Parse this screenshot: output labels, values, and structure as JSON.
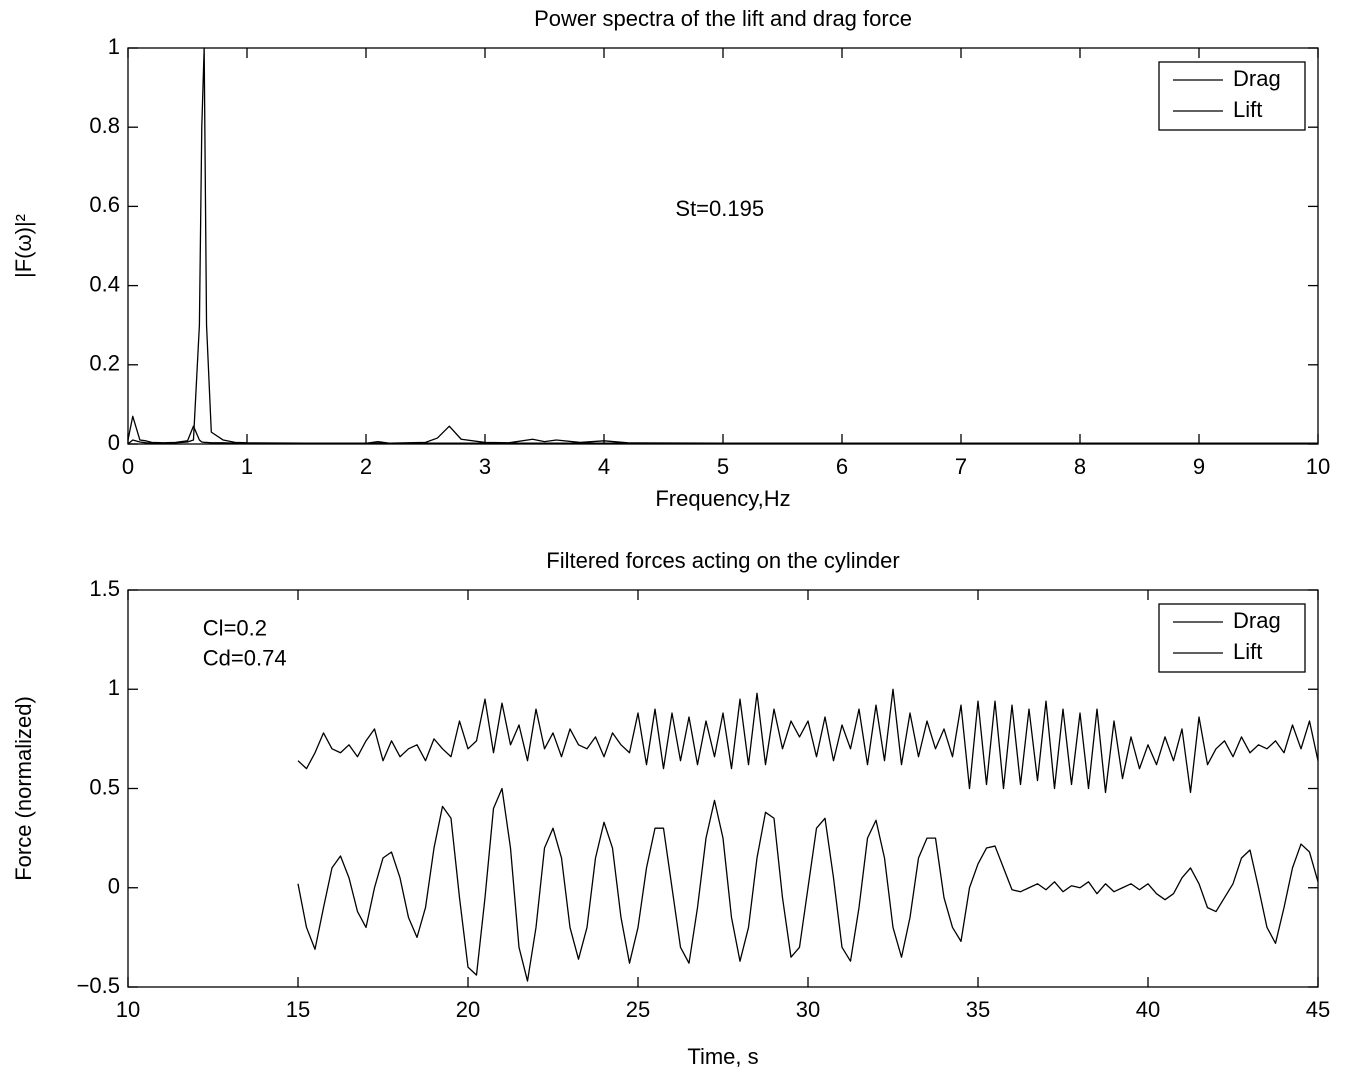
{
  "chart_data": [
    {
      "type": "line",
      "title": "Power spectra of the lift and drag force",
      "xlabel": "Frequency,Hz",
      "ylabel": "|F(ω)|²",
      "x": [
        0,
        0.04,
        0.1,
        0.15,
        0.2,
        0.3,
        0.4,
        0.5,
        0.55,
        0.6,
        0.62,
        0.64,
        0.66,
        0.7,
        0.8,
        0.9,
        1,
        1.5,
        2,
        2.1,
        2.2,
        2.5,
        2.6,
        2.7,
        2.8,
        3,
        3.2,
        3.4,
        3.5,
        3.6,
        3.8,
        4,
        4.2,
        5,
        6,
        7,
        8,
        9,
        10
      ],
      "series": [
        {
          "name": "Drag",
          "color": "#000000",
          "values": [
            0.01,
            0.07,
            0.01,
            0.008,
            0.004,
            0.003,
            0.004,
            0.008,
            0.045,
            0.01,
            0.005,
            0.004,
            0.004,
            0.003,
            0.003,
            0.002,
            0.002,
            0.002,
            0.002,
            0.006,
            0.002,
            0.004,
            0.015,
            0.045,
            0.012,
            0.004,
            0.003,
            0.012,
            0.006,
            0.01,
            0.004,
            0.008,
            0.003,
            0.002,
            0.002,
            0.002,
            0.002,
            0.002,
            0.002
          ]
        },
        {
          "name": "Lift",
          "color": "#000000",
          "values": [
            0,
            0.01,
            0.005,
            0.003,
            0.002,
            0.002,
            0.003,
            0.005,
            0.01,
            0.3,
            0.8,
            1,
            0.3,
            0.03,
            0.01,
            0.004,
            0.003,
            0.002,
            0.002,
            0.002,
            0.002,
            0.002,
            0.002,
            0.002,
            0.002,
            0.002,
            0.002,
            0.002,
            0.002,
            0.002,
            0.002,
            0.002,
            0.002,
            0.001,
            0.001,
            0.001,
            0.001,
            0.001,
            0.001
          ]
        }
      ],
      "xlim": [
        0,
        10
      ],
      "xticks": [
        0,
        1,
        2,
        3,
        4,
        5,
        6,
        7,
        8,
        9,
        10
      ],
      "ylim": [
        0,
        1
      ],
      "yticks": [
        0,
        0.2,
        0.4,
        0.6,
        0.8,
        1
      ],
      "grid": false,
      "legend": "upper right",
      "annotations": [
        {
          "text": "St=0.195",
          "x": 4.6,
          "y": 0.59
        }
      ]
    },
    {
      "type": "line",
      "title": "Filtered forces acting on the cylinder",
      "xlabel": "Time, s",
      "ylabel": "Force (normalized)",
      "x": [
        15,
        15.25,
        15.5,
        15.75,
        16,
        16.25,
        16.5,
        16.75,
        17,
        17.25,
        17.5,
        17.75,
        18,
        18.25,
        18.5,
        18.75,
        19,
        19.25,
        19.5,
        19.75,
        20,
        20.25,
        20.5,
        20.75,
        21,
        21.25,
        21.5,
        21.75,
        22,
        22.25,
        22.5,
        22.75,
        23,
        23.25,
        23.5,
        23.75,
        24,
        24.25,
        24.5,
        24.75,
        25,
        25.25,
        25.5,
        25.75,
        26,
        26.25,
        26.5,
        26.75,
        27,
        27.25,
        27.5,
        27.75,
        28,
        28.25,
        28.5,
        28.75,
        29,
        29.25,
        29.5,
        29.75,
        30,
        30.25,
        30.5,
        30.75,
        31,
        31.25,
        31.5,
        31.75,
        32,
        32.25,
        32.5,
        32.75,
        33,
        33.25,
        33.5,
        33.75,
        34,
        34.25,
        34.5,
        34.75,
        35,
        35.25,
        35.5,
        35.75,
        36,
        36.25,
        36.5,
        36.75,
        37,
        37.25,
        37.5,
        37.75,
        38,
        38.25,
        38.5,
        38.75,
        39,
        39.25,
        39.5,
        39.75,
        40,
        40.25,
        40.5,
        40.75,
        41,
        41.25,
        41.5,
        41.75,
        42,
        42.25,
        42.5,
        42.75,
        43,
        43.25,
        43.5,
        43.75,
        44,
        44.25,
        44.5,
        44.75,
        45
      ],
      "series": [
        {
          "name": "Drag",
          "color": "#000000",
          "values": [
            0.64,
            0.6,
            0.68,
            0.78,
            0.7,
            0.68,
            0.72,
            0.66,
            0.74,
            0.8,
            0.64,
            0.74,
            0.66,
            0.7,
            0.72,
            0.64,
            0.75,
            0.7,
            0.66,
            0.84,
            0.7,
            0.74,
            0.95,
            0.68,
            0.93,
            0.72,
            0.82,
            0.64,
            0.9,
            0.7,
            0.78,
            0.66,
            0.8,
            0.72,
            0.7,
            0.76,
            0.66,
            0.78,
            0.72,
            0.68,
            0.88,
            0.62,
            0.9,
            0.6,
            0.88,
            0.64,
            0.86,
            0.62,
            0.84,
            0.66,
            0.88,
            0.6,
            0.95,
            0.62,
            0.98,
            0.62,
            0.9,
            0.7,
            0.84,
            0.76,
            0.84,
            0.66,
            0.86,
            0.64,
            0.82,
            0.7,
            0.9,
            0.62,
            0.92,
            0.64,
            1.0,
            0.62,
            0.88,
            0.66,
            0.84,
            0.7,
            0.8,
            0.66,
            0.92,
            0.5,
            0.94,
            0.52,
            0.94,
            0.5,
            0.92,
            0.52,
            0.9,
            0.54,
            0.94,
            0.5,
            0.9,
            0.52,
            0.88,
            0.5,
            0.9,
            0.48,
            0.84,
            0.55,
            0.76,
            0.6,
            0.72,
            0.62,
            0.76,
            0.64,
            0.8,
            0.48,
            0.86,
            0.62,
            0.7,
            0.74,
            0.66,
            0.76,
            0.68,
            0.72,
            0.7,
            0.74,
            0.68,
            0.82,
            0.7,
            0.84,
            0.64
          ]
        },
        {
          "name": "Lift",
          "color": "#000000",
          "values": [
            0.02,
            -0.2,
            -0.31,
            -0.1,
            0.1,
            0.16,
            0.05,
            -0.12,
            -0.2,
            0.0,
            0.15,
            0.18,
            0.05,
            -0.15,
            -0.25,
            -0.1,
            0.2,
            0.41,
            0.35,
            -0.05,
            -0.4,
            -0.44,
            -0.05,
            0.4,
            0.5,
            0.2,
            -0.3,
            -0.47,
            -0.2,
            0.2,
            0.3,
            0.15,
            -0.2,
            -0.36,
            -0.2,
            0.15,
            0.33,
            0.2,
            -0.15,
            -0.38,
            -0.2,
            0.1,
            0.3,
            0.3,
            0.0,
            -0.3,
            -0.38,
            -0.1,
            0.25,
            0.44,
            0.25,
            -0.15,
            -0.37,
            -0.2,
            0.15,
            0.38,
            0.35,
            -0.05,
            -0.35,
            -0.3,
            0.0,
            0.3,
            0.35,
            0.05,
            -0.3,
            -0.37,
            -0.1,
            0.25,
            0.34,
            0.15,
            -0.2,
            -0.35,
            -0.15,
            0.15,
            0.25,
            0.25,
            -0.05,
            -0.2,
            -0.27,
            0.0,
            0.12,
            0.2,
            0.21,
            0.1,
            -0.01,
            -0.02,
            0.0,
            0.02,
            -0.01,
            0.03,
            -0.02,
            0.01,
            0.0,
            0.03,
            -0.03,
            0.02,
            -0.02,
            0.0,
            0.02,
            -0.01,
            0.02,
            -0.03,
            -0.06,
            -0.03,
            0.05,
            0.1,
            0.02,
            -0.1,
            -0.12,
            -0.05,
            0.02,
            0.15,
            0.19,
            0.0,
            -0.2,
            -0.28,
            -0.1,
            0.1,
            0.22,
            0.18,
            0.03
          ]
        }
      ],
      "xlim": [
        10,
        45
      ],
      "xticks": [
        10,
        15,
        20,
        25,
        30,
        35,
        40,
        45
      ],
      "ylim": [
        -0.5,
        1.5
      ],
      "yticks": [
        {
          "value": -0.5,
          "label": "−0.5"
        },
        0,
        0.5,
        1,
        1.5
      ],
      "grid": false,
      "legend": "upper right",
      "annotations": [
        {
          "text": "Cl=0.2",
          "x": 12.2,
          "y": 1.3
        },
        {
          "text": "Cd=0.74",
          "x": 12.2,
          "y": 1.15
        }
      ]
    }
  ]
}
